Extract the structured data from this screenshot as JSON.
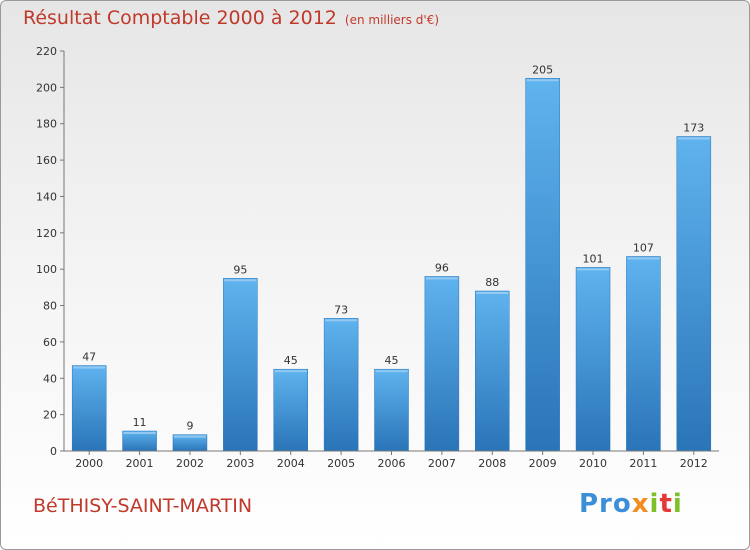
{
  "chart_data": {
    "type": "bar",
    "title": "Résultat Comptable 2000 à 2012",
    "subtitle": "(en milliers d'€)",
    "categories": [
      "2000",
      "2001",
      "2002",
      "2003",
      "2004",
      "2005",
      "2006",
      "2007",
      "2008",
      "2009",
      "2010",
      "2011",
      "2012"
    ],
    "values": [
      47,
      11,
      9,
      95,
      45,
      73,
      45,
      96,
      88,
      205,
      101,
      107,
      173
    ],
    "ylim": [
      0,
      220
    ],
    "yticks": [
      0,
      20,
      40,
      60,
      80,
      100,
      120,
      140,
      160,
      180,
      200,
      220
    ],
    "xlabel": "",
    "ylabel": "",
    "grid": false,
    "bar_color": "#3b8fd8",
    "bar_color_light": "#5fb3ee",
    "bar_color_dark": "#2a74b8"
  },
  "commune": "BéTHISY-SAINT-MARTIN",
  "logo": {
    "p1": "Pro",
    "p2": "x",
    "p3": "i",
    "p4": "t",
    "p5": "i"
  }
}
